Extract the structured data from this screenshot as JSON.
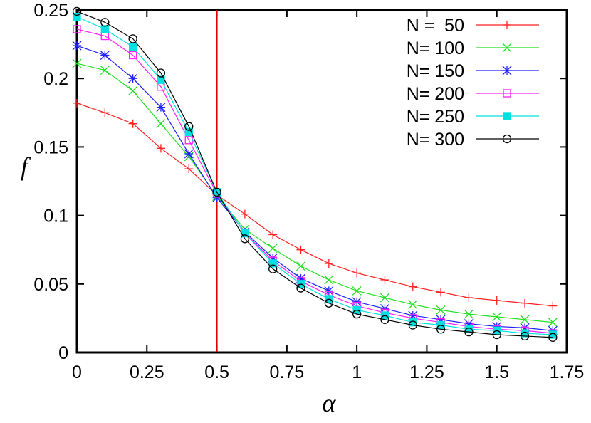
{
  "chart_data": {
    "type": "line",
    "xlabel": "α",
    "ylabel": "f",
    "xlim": [
      0,
      1.75
    ],
    "ylim": [
      0,
      0.25
    ],
    "xticks": [
      "0",
      "0.25",
      "0.5",
      "0.75",
      "1",
      "1.25",
      "1.5",
      "1.75"
    ],
    "yticks": [
      "0",
      "0.05",
      "0.1",
      "0.15",
      "0.2",
      "0.25"
    ],
    "grid": false,
    "legend_position": "top-right",
    "vertical_line": {
      "x": 0.5,
      "color": "#e00000"
    },
    "x": [
      0,
      0.1,
      0.2,
      0.3,
      0.4,
      0.5,
      0.6,
      0.7,
      0.8,
      0.9,
      1.0,
      1.1,
      1.2,
      1.3,
      1.4,
      1.5,
      1.6,
      1.7
    ],
    "series": [
      {
        "name": "N =  50",
        "color": "#ff2020",
        "marker": "plus",
        "values": [
          0.182,
          0.175,
          0.167,
          0.149,
          0.134,
          0.115,
          0.101,
          0.086,
          0.075,
          0.065,
          0.058,
          0.053,
          0.048,
          0.044,
          0.04,
          0.038,
          0.036,
          0.034
        ]
      },
      {
        "name": "N= 100",
        "color": "#20e020",
        "marker": "cross",
        "values": [
          0.211,
          0.206,
          0.191,
          0.167,
          0.143,
          0.114,
          0.09,
          0.076,
          0.063,
          0.053,
          0.045,
          0.04,
          0.035,
          0.031,
          0.028,
          0.026,
          0.024,
          0.022
        ]
      },
      {
        "name": "N= 150",
        "color": "#2020ff",
        "marker": "star",
        "values": [
          0.224,
          0.217,
          0.2,
          0.179,
          0.145,
          0.113,
          0.088,
          0.069,
          0.054,
          0.045,
          0.037,
          0.032,
          0.027,
          0.024,
          0.021,
          0.019,
          0.018,
          0.016
        ]
      },
      {
        "name": "N= 200",
        "color": "#ff20ff",
        "marker": "square",
        "values": [
          0.236,
          0.231,
          0.217,
          0.194,
          0.155,
          0.116,
          0.087,
          0.067,
          0.052,
          0.042,
          0.034,
          0.029,
          0.025,
          0.022,
          0.019,
          0.017,
          0.016,
          0.014
        ]
      },
      {
        "name": "N= 250",
        "color": "#00e0e0",
        "marker": "filled-square",
        "values": [
          0.245,
          0.236,
          0.223,
          0.199,
          0.161,
          0.117,
          0.087,
          0.065,
          0.05,
          0.039,
          0.031,
          0.027,
          0.022,
          0.02,
          0.017,
          0.016,
          0.014,
          0.013
        ]
      },
      {
        "name": "N= 300",
        "color": "#000000",
        "marker": "circle",
        "values": [
          0.249,
          0.241,
          0.229,
          0.204,
          0.165,
          0.117,
          0.083,
          0.061,
          0.047,
          0.036,
          0.028,
          0.024,
          0.02,
          0.017,
          0.015,
          0.013,
          0.012,
          0.011
        ]
      }
    ]
  }
}
